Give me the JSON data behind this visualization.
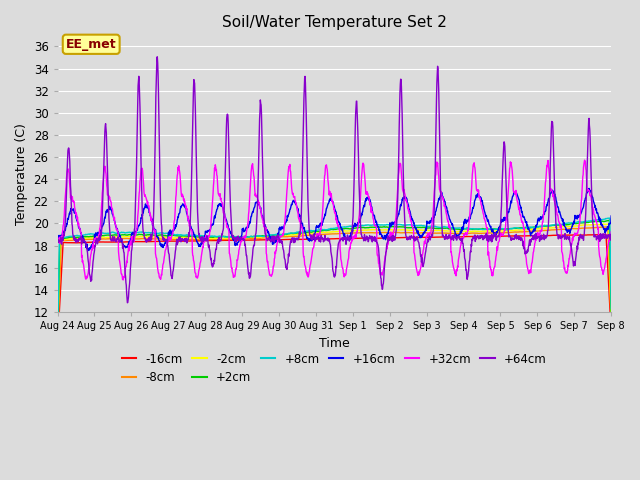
{
  "title": "Soil/Water Temperature Set 2",
  "xlabel": "Time",
  "ylabel": "Temperature (C)",
  "ylim": [
    12,
    37
  ],
  "yticks": [
    12,
    14,
    16,
    18,
    20,
    22,
    24,
    26,
    28,
    30,
    32,
    34,
    36
  ],
  "background_color": "#dcdcdc",
  "annotation_text": "EE_met",
  "annotation_bg": "#ffff99",
  "annotation_border": "#c8a000",
  "series": [
    {
      "label": "-16cm",
      "color": "#ff0000"
    },
    {
      "label": "-8cm",
      "color": "#ff8800"
    },
    {
      "label": "-2cm",
      "color": "#ffff00"
    },
    {
      "label": "+2cm",
      "color": "#00cc00"
    },
    {
      "label": "+8cm",
      "color": "#00cccc"
    },
    {
      "label": "+16cm",
      "color": "#0000ee"
    },
    {
      "label": "+32cm",
      "color": "#ff00ff"
    },
    {
      "label": "+64cm",
      "color": "#8800cc"
    }
  ],
  "date_labels": [
    "Aug 24",
    "Aug 25",
    "Aug 26",
    "Aug 27",
    "Aug 28",
    "Aug 29",
    "Aug 30",
    "Aug 31",
    "Sep 1",
    "Sep 2",
    "Sep 3",
    "Sep 4",
    "Sep 5",
    "Sep 6",
    "Sep 7",
    "Sep 8"
  ]
}
